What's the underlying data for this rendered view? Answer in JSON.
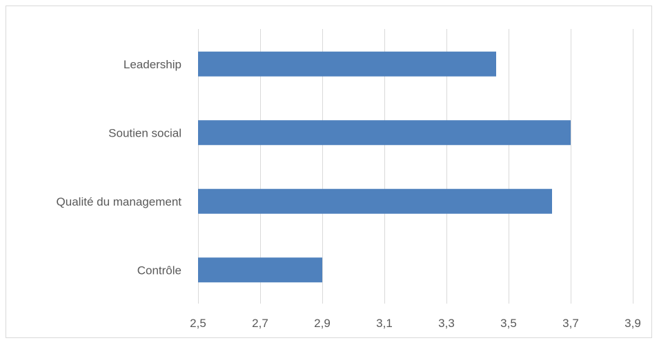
{
  "chart_data": {
    "type": "bar",
    "orientation": "horizontal",
    "categories": [
      "Leadership",
      "Soutien social",
      "Qualité du management",
      "Contrôle"
    ],
    "values": [
      3.46,
      3.7,
      3.64,
      2.9
    ],
    "xlim": [
      2.5,
      3.9
    ],
    "xticks": [
      "2,5",
      "2,7",
      "2,9",
      "3,1",
      "3,3",
      "3,5",
      "3,7",
      "3,9"
    ],
    "xtick_values": [
      2.5,
      2.7,
      2.9,
      3.1,
      3.3,
      3.5,
      3.7,
      3.9
    ],
    "grid": true,
    "title": "",
    "xlabel": "",
    "ylabel": "",
    "bar_color": "#4f81bd"
  }
}
